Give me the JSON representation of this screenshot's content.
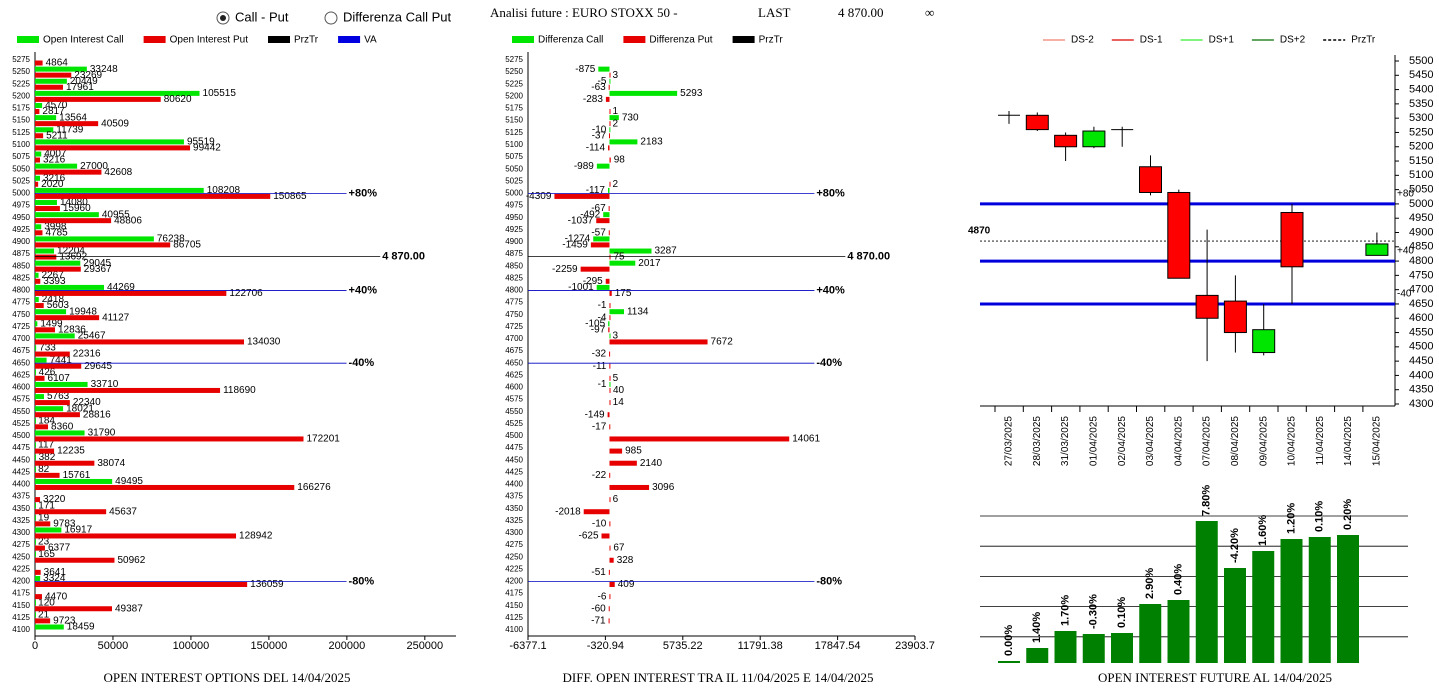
{
  "header": {
    "options": [
      "Call - Put",
      "Differenza Call Put"
    ],
    "instrument": "Analisi future : EURO STOXX 50 -",
    "last_label": "LAST",
    "last_value": "4 870.00",
    "infinity": "∞"
  },
  "chart_data": [
    {
      "type": "hbar",
      "title": "OPEN INTEREST OPTIONS DEL 14/04/2025",
      "categories": [
        5275,
        5250,
        5225,
        5200,
        5175,
        5150,
        5125,
        5100,
        5075,
        5050,
        5025,
        5000,
        4975,
        4950,
        4925,
        4900,
        4875,
        4850,
        4825,
        4800,
        4775,
        4750,
        4725,
        4700,
        4675,
        4650,
        4625,
        4600,
        4575,
        4550,
        4525,
        4500,
        4475,
        4450,
        4425,
        4400,
        4375,
        4350,
        4325,
        4300,
        4275,
        4250,
        4225,
        4200,
        4175,
        4150,
        4125,
        4100
      ],
      "series": [
        {
          "name": "Open Interest Call",
          "color": "#00e600",
          "values": [
            null,
            33248,
            20449,
            105515,
            4570,
            13564,
            11739,
            95519,
            4007,
            27000,
            3216,
            108208,
            14080,
            40955,
            3998,
            76238,
            12204,
            29045,
            2267,
            44269,
            2418,
            19948,
            1499,
            25467,
            733,
            7441,
            426,
            33710,
            5763,
            18021,
            184,
            31790,
            117,
            382,
            82,
            49495,
            null,
            171,
            19,
            16917,
            23,
            165,
            null,
            3324,
            null,
            120,
            21,
            18459
          ]
        },
        {
          "name": "Open Interest Put",
          "color": "#e60000",
          "values": [
            4864,
            23269,
            17961,
            80620,
            2817,
            40509,
            5211,
            99442,
            3216,
            42608,
            2020,
            150865,
            15960,
            48806,
            4785,
            86705,
            13692,
            29367,
            3393,
            122706,
            5603,
            41127,
            12836,
            134030,
            22316,
            29645,
            6107,
            118690,
            22340,
            28816,
            8360,
            172201,
            12235,
            38074,
            15761,
            166276,
            3220,
            45637,
            9783,
            128942,
            6377,
            50962,
            3641,
            136059,
            4470,
            49387,
            9723,
            null
          ]
        }
      ],
      "legend_extra": [
        {
          "name": "PrzTr",
          "color": "#000000"
        },
        {
          "name": "VA",
          "color": "#0000e0"
        }
      ],
      "xlim": [
        0,
        270000
      ],
      "xticks": [
        0,
        50000,
        100000,
        150000,
        200000,
        250000
      ],
      "price_line": {
        "value": 4870,
        "label": "4 870.00"
      },
      "reference_lines": [
        {
          "value": 5000,
          "label": "+80%"
        },
        {
          "value": 4800,
          "label": "+40%"
        },
        {
          "value": 4650,
          "label": "-40%"
        },
        {
          "value": 4200,
          "label": "-80%"
        }
      ]
    },
    {
      "type": "hbar",
      "title": "DIFF. OPEN INTEREST TRA IL 11/04/2025 E 14/04/2025",
      "categories": [
        5275,
        5250,
        5225,
        5200,
        5175,
        5150,
        5125,
        5100,
        5075,
        5050,
        5025,
        5000,
        4975,
        4950,
        4925,
        4900,
        4875,
        4850,
        4825,
        4800,
        4775,
        4750,
        4725,
        4700,
        4675,
        4650,
        4625,
        4600,
        4575,
        4550,
        4525,
        4500,
        4475,
        4450,
        4425,
        4400,
        4375,
        4350,
        4325,
        4300,
        4275,
        4250,
        4225,
        4200,
        4175,
        4150,
        4125,
        4100
      ],
      "series": [
        {
          "name": "Differenza Call",
          "color": "#00e600",
          "values": [
            null,
            -875,
            -5,
            5293,
            null,
            730,
            -10,
            2183,
            null,
            -989,
            null,
            -117,
            null,
            -492,
            null,
            -1274,
            3287,
            2017,
            null,
            -1001,
            null,
            1134,
            -105,
            3,
            null,
            null,
            null,
            -1,
            null,
            null,
            null,
            null,
            null,
            null,
            null,
            null,
            null,
            null,
            null,
            null,
            null,
            null,
            null,
            null,
            null,
            null,
            null,
            null
          ]
        },
        {
          "name": "Differenza Put",
          "color": "#e60000",
          "values": [
            null,
            3,
            -63,
            -283,
            1,
            2,
            -37,
            -114,
            98,
            null,
            2,
            -4309,
            -67,
            -1037,
            -57,
            -1459,
            75,
            -2259,
            -295,
            175,
            -1,
            -4,
            -97,
            7672,
            -32,
            -11,
            5,
            40,
            14,
            -149,
            -17,
            14061,
            985,
            2140,
            -22,
            3096,
            6,
            -2018,
            -10,
            -625,
            67,
            328,
            -51,
            409,
            -6,
            -60,
            -71,
            null
          ]
        }
      ],
      "legend_extra": [
        {
          "name": "PrzTr",
          "color": "#000000"
        }
      ],
      "xlim": [
        -6377.1,
        23903.7
      ],
      "xticks": [
        -6377.1,
        -320.94,
        5735.22,
        11791.38,
        17847.54,
        23903.7
      ],
      "price_line": {
        "value": 4870,
        "label": "4 870.00"
      },
      "reference_lines": [
        {
          "value": 5000,
          "label": "+80%"
        },
        {
          "value": 4800,
          "label": "+40%"
        },
        {
          "value": 4650,
          "label": "-40%"
        },
        {
          "value": 4200,
          "label": "-80%"
        }
      ]
    },
    {
      "type": "candlestick",
      "categories": [
        "27/03/2025",
        "28/03/2025",
        "31/03/2025",
        "01/04/2025",
        "02/04/2025",
        "03/04/2025",
        "04/04/2025",
        "07/04/2025",
        "08/04/2025",
        "09/04/2025",
        "10/04/2025",
        "11/04/2025",
        "14/04/2025",
        "15/04/2025"
      ],
      "open": [
        5310,
        5310,
        5240,
        5200,
        5260,
        5130,
        5040,
        4680,
        4660,
        4480,
        4970,
        null,
        null,
        4820
      ],
      "high": [
        5325,
        5320,
        5250,
        5270,
        5270,
        5170,
        5050,
        4910,
        4750,
        4650,
        5000,
        null,
        null,
        4900
      ],
      "low": [
        5280,
        5255,
        5150,
        5195,
        5200,
        5030,
        4740,
        4450,
        4480,
        4470,
        4650,
        null,
        null,
        4820
      ],
      "close": [
        5310,
        5260,
        5200,
        5255,
        5260,
        5040,
        4740,
        4600,
        4550,
        4560,
        4780,
        null,
        null,
        4860
      ],
      "up_color": "#00e600",
      "down_color": "#ff0000",
      "ylim": [
        4300,
        5500
      ],
      "yticks": [
        4300,
        4350,
        4400,
        4450,
        4500,
        4550,
        4600,
        4650,
        4700,
        4750,
        4800,
        4850,
        4900,
        4950,
        5000,
        5050,
        5100,
        5150,
        5200,
        5250,
        5300,
        5350,
        5400,
        5450,
        5500
      ],
      "legend": [
        {
          "name": "DS-2",
          "color": "#f08070"
        },
        {
          "name": "DS-1",
          "color": "#e00000"
        },
        {
          "name": "DS+1",
          "color": "#33ee33"
        },
        {
          "name": "DS+2",
          "color": "#007000"
        },
        {
          "name": "PrzTr",
          "color": "#000000",
          "dashed": true
        }
      ],
      "bands": [
        {
          "value": 5000,
          "label": "+80"
        },
        {
          "value": 4800,
          "label": "+40"
        },
        {
          "value": 4650,
          "label": "-40"
        }
      ],
      "band_color": "#0000dd",
      "price_line": {
        "value": 4870,
        "label": "4870"
      }
    },
    {
      "type": "bar",
      "title": "OPEN INTEREST FUTURE AL 14/04/2025",
      "values": [
        0,
        1.4,
        1.7,
        -0.3,
        0.1,
        2.9,
        0.4,
        7.8,
        -4.2,
        1.6,
        1.2,
        0.1,
        0.2
      ],
      "value_labels": [
        "0.00%",
        "1.40%",
        "1.70%",
        "-0.30%",
        "0.10%",
        "2.90%",
        "0.40%",
        "7.80%",
        "-4.20%",
        "1.60%",
        "1.20%",
        "0.10%",
        "0.20%"
      ],
      "levels": [
        2,
        15,
        32,
        29,
        30,
        59,
        63,
        142,
        95,
        112,
        124,
        126,
        128
      ],
      "ylim": [
        0,
        150
      ],
      "color": "#008000",
      "grid": true
    }
  ]
}
